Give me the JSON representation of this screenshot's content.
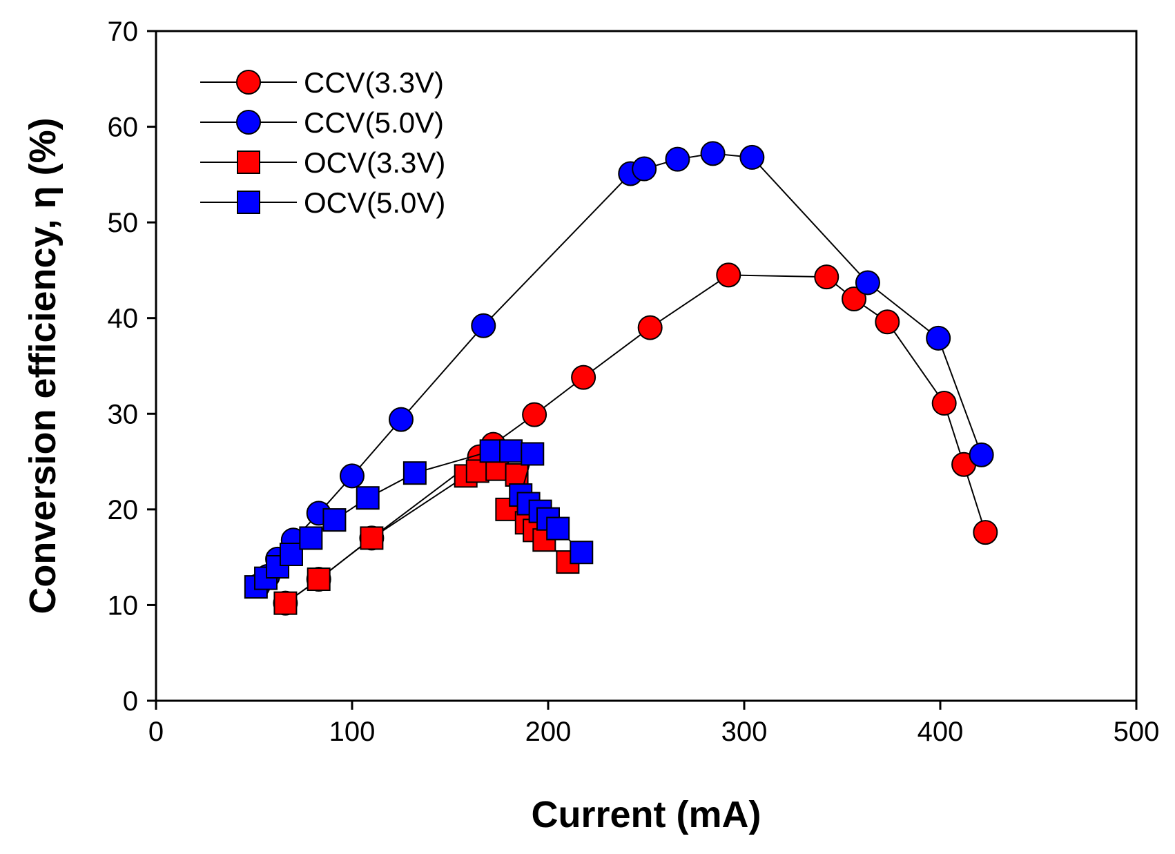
{
  "chart_data": {
    "type": "scatter",
    "title": "",
    "xlabel": "Current (mA)",
    "ylabel": "Conversion efficiency, η  (%)",
    "xlim": [
      0,
      500
    ],
    "ylim": [
      0,
      70
    ],
    "xticks": [
      0,
      100,
      200,
      300,
      400,
      500
    ],
    "yticks": [
      0,
      10,
      20,
      30,
      40,
      50,
      60,
      70
    ],
    "grid": false,
    "legend_position": "top-left",
    "series": [
      {
        "name": "CCV(3.3V)",
        "marker": "circle",
        "color": "#ff0000",
        "x": [
          66,
          83,
          110,
          165,
          172,
          193,
          218,
          252,
          292,
          342,
          356,
          373,
          402,
          412,
          423
        ],
        "y": [
          10.2,
          12.7,
          17.0,
          25.5,
          26.8,
          29.9,
          33.8,
          39.0,
          44.5,
          44.3,
          42.0,
          39.6,
          31.1,
          24.7,
          17.6
        ]
      },
      {
        "name": "CCV(5.0V)",
        "marker": "circle",
        "color": "#0000ff",
        "x": [
          52,
          57,
          62,
          70,
          83,
          100,
          125,
          167,
          242,
          249,
          266,
          284,
          304,
          363,
          399,
          421
        ],
        "y": [
          12.0,
          13.0,
          14.8,
          16.8,
          19.6,
          23.5,
          29.4,
          39.2,
          55.1,
          55.6,
          56.6,
          57.2,
          56.8,
          43.7,
          37.9,
          25.7
        ]
      },
      {
        "name": "OCV(3.3V)",
        "marker": "square",
        "color": "#ff0000",
        "x": [
          66,
          83,
          110,
          158,
          164,
          174,
          184,
          179,
          189,
          193,
          198,
          210
        ],
        "y": [
          10.2,
          12.7,
          17.0,
          23.5,
          24.0,
          24.2,
          23.6,
          20.0,
          18.6,
          17.8,
          16.8,
          14.5
        ]
      },
      {
        "name": "OCV(5.0V)",
        "marker": "square",
        "color": "#0000ff",
        "x": [
          51,
          56,
          62,
          69,
          79,
          91,
          108,
          132,
          171,
          181,
          192,
          186,
          190,
          196,
          200,
          205,
          217
        ],
        "y": [
          11.9,
          12.8,
          14.0,
          15.3,
          17.0,
          18.9,
          21.2,
          23.8,
          26.1,
          26.1,
          25.8,
          21.5,
          20.6,
          19.8,
          19.0,
          18.0,
          15.5
        ]
      }
    ]
  }
}
